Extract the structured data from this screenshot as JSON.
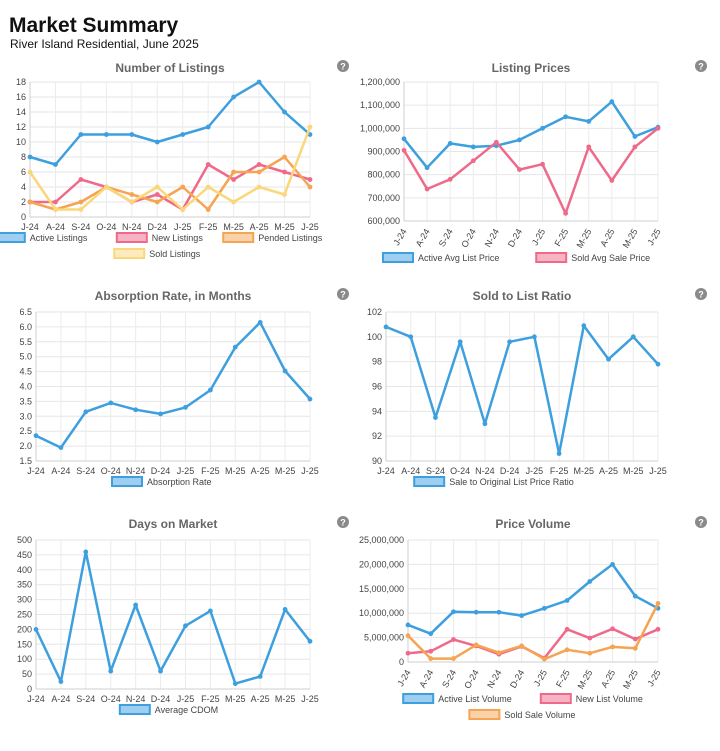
{
  "page": {
    "title": "Market Summary",
    "subtitle": "River Island Residential, June 2025"
  },
  "chart_data": [
    {
      "type": "line",
      "title": "Number of Listings",
      "categories": [
        "J-24",
        "A-24",
        "S-24",
        "O-24",
        "N-24",
        "D-24",
        "J-25",
        "F-25",
        "M-25",
        "A-25",
        "M-25",
        "J-25"
      ],
      "ylim": [
        0,
        18
      ],
      "yticks": [
        0,
        2,
        4,
        6,
        8,
        10,
        12,
        14,
        16,
        18
      ],
      "yticklabels": [
        "0",
        "2",
        "4",
        "6",
        "8",
        "10",
        "12",
        "14",
        "16",
        "18"
      ],
      "series": [
        {
          "name": "Active Listings",
          "color": "#3d9fde",
          "values": [
            8,
            7,
            11,
            11,
            11,
            10,
            11,
            12,
            16,
            18,
            14,
            11
          ]
        },
        {
          "name": "New Listings",
          "color": "#ef6a8a",
          "values": [
            2,
            2,
            5,
            4,
            2,
            3,
            1,
            7,
            5,
            7,
            6,
            5
          ]
        },
        {
          "name": "Pended Listings",
          "color": "#f5a452",
          "values": [
            2,
            1,
            2,
            4,
            3,
            2,
            4,
            1,
            6,
            6,
            8,
            4
          ]
        },
        {
          "name": "Sold Listings",
          "color": "#fad77a",
          "values": [
            6,
            1,
            1,
            4,
            2,
            4,
            1,
            4,
            2,
            4,
            3,
            12
          ]
        }
      ],
      "legend_position": "bottom",
      "grid": true
    },
    {
      "type": "line",
      "title": "Listing Prices",
      "categories": [
        "J-24",
        "A-24",
        "S-24",
        "O-24",
        "N-24",
        "D-24",
        "J-25",
        "F-25",
        "M-25",
        "A-25",
        "M-25",
        "J-25"
      ],
      "ylim": [
        600000,
        1200000
      ],
      "yticks": [
        600000,
        700000,
        800000,
        900000,
        1000000,
        1100000,
        1200000
      ],
      "yticklabels": [
        "600,000",
        "700,000",
        "800,000",
        "900,000",
        "1,000,000",
        "1,100,000",
        "1,200,000"
      ],
      "rotated_xlabels": true,
      "series": [
        {
          "name": "Active Avg List Price",
          "color": "#3d9fde",
          "values": [
            955000,
            830000,
            935000,
            920000,
            925000,
            950000,
            1000000,
            1050000,
            1030000,
            1115000,
            965000,
            1005000
          ]
        },
        {
          "name": "Sold Avg Sale Price",
          "color": "#ef6a8a",
          "values": [
            905000,
            738000,
            780000,
            860000,
            940000,
            822000,
            845000,
            633000,
            920000,
            775000,
            920000,
            1000000
          ]
        }
      ],
      "legend_position": "bottom",
      "grid": true
    },
    {
      "type": "line",
      "title": "Absorption Rate, in Months",
      "categories": [
        "J-24",
        "A-24",
        "S-24",
        "O-24",
        "N-24",
        "D-24",
        "J-25",
        "F-25",
        "M-25",
        "A-25",
        "M-25",
        "J-25"
      ],
      "ylim": [
        1.5,
        6.5
      ],
      "yticks": [
        1.5,
        2.0,
        2.5,
        3.0,
        3.5,
        4.0,
        4.5,
        5.0,
        5.5,
        6.0,
        6.5
      ],
      "yticklabels": [
        "1.5",
        "2.0",
        "2.5",
        "3.0",
        "3.5",
        "4.0",
        "4.5",
        "5.0",
        "5.5",
        "6.0",
        "6.5"
      ],
      "series": [
        {
          "name": "Absorption Rate",
          "color": "#3d9fde",
          "values": [
            2.35,
            1.95,
            3.15,
            3.45,
            3.22,
            3.08,
            3.3,
            3.88,
            5.32,
            6.15,
            4.52,
            3.58
          ]
        }
      ],
      "legend_position": "bottom",
      "grid": true
    },
    {
      "type": "line",
      "title": "Sold to List Ratio",
      "categories": [
        "J-24",
        "A-24",
        "S-24",
        "O-24",
        "N-24",
        "D-24",
        "J-25",
        "F-25",
        "M-25",
        "A-25",
        "M-25",
        "J-25"
      ],
      "ylim": [
        90,
        102
      ],
      "yticks": [
        90,
        92,
        94,
        96,
        98,
        100,
        102
      ],
      "yticklabels": [
        "90",
        "92",
        "94",
        "96",
        "98",
        "100",
        "102"
      ],
      "series": [
        {
          "name": "Sale to Original List Price Ratio",
          "color": "#3d9fde",
          "values": [
            100.8,
            100.0,
            93.5,
            99.6,
            93.0,
            99.6,
            100.0,
            90.6,
            100.9,
            98.2,
            100.0,
            97.8
          ]
        }
      ],
      "legend_position": "bottom",
      "grid": true
    },
    {
      "type": "line",
      "title": "Days on Market",
      "categories": [
        "J-24",
        "A-24",
        "S-24",
        "O-24",
        "N-24",
        "D-24",
        "J-25",
        "F-25",
        "M-25",
        "A-25",
        "M-25",
        "J-25"
      ],
      "ylim": [
        0,
        500
      ],
      "yticks": [
        0,
        50,
        100,
        150,
        200,
        250,
        300,
        350,
        400,
        450,
        500
      ],
      "yticklabels": [
        "0",
        "50",
        "100",
        "150",
        "200",
        "250",
        "300",
        "350",
        "400",
        "450",
        "500"
      ],
      "series": [
        {
          "name": "Average CDOM",
          "color": "#3d9fde",
          "values": [
            200,
            25,
            460,
            60,
            282,
            60,
            212,
            262,
            18,
            42,
            267,
            160
          ]
        }
      ],
      "legend_position": "bottom",
      "grid": true
    },
    {
      "type": "line",
      "title": "Price Volume",
      "categories": [
        "J-24",
        "A-24",
        "S-24",
        "O-24",
        "N-24",
        "D-24",
        "J-25",
        "F-25",
        "M-25",
        "A-25",
        "M-25",
        "J-25"
      ],
      "ylim": [
        0,
        25000000
      ],
      "yticks": [
        0,
        5000000,
        10000000,
        15000000,
        20000000,
        25000000
      ],
      "yticklabels": [
        "0",
        "5,000,000",
        "10,000,000",
        "15,000,000",
        "20,000,000",
        "25,000,000"
      ],
      "rotated_xlabels": true,
      "series": [
        {
          "name": "Active List Volume",
          "color": "#3d9fde",
          "values": [
            7600000,
            5800000,
            10300000,
            10200000,
            10200000,
            9500000,
            11000000,
            12600000,
            16500000,
            20000000,
            13500000,
            11000000
          ]
        },
        {
          "name": "New List Volume",
          "color": "#ef6a8a",
          "values": [
            1800000,
            2200000,
            4600000,
            3300000,
            1600000,
            3200000,
            800000,
            6700000,
            4900000,
            6800000,
            4700000,
            6700000
          ]
        },
        {
          "name": "Sold Sale Volume",
          "color": "#f5a452",
          "values": [
            5400000,
            700000,
            700000,
            3500000,
            1900000,
            3300000,
            600000,
            2500000,
            1800000,
            3100000,
            2800000,
            12000000
          ]
        }
      ],
      "legend_position": "bottom",
      "grid": true
    }
  ],
  "icons": {
    "help": "question-mark-icon"
  }
}
